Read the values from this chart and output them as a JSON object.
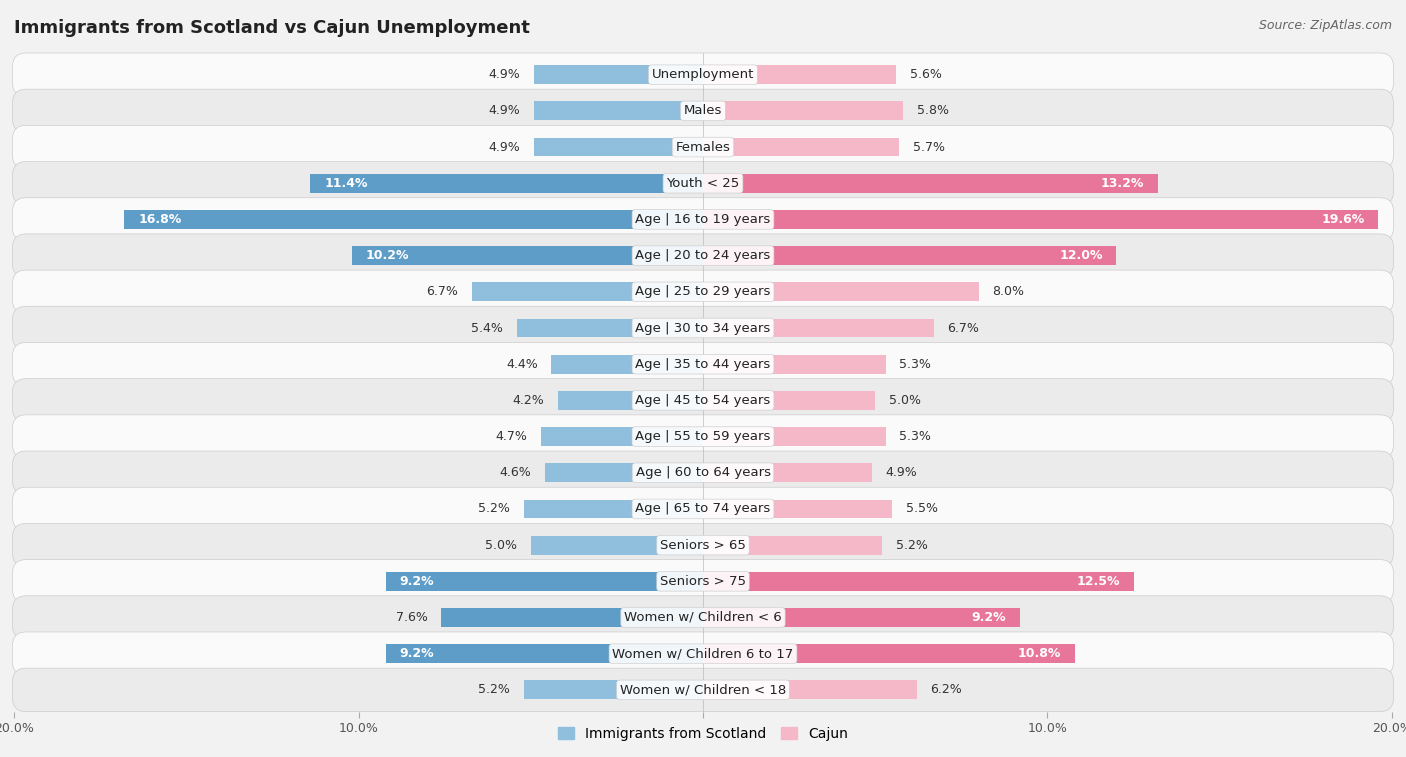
{
  "title": "Immigrants from Scotland vs Cajun Unemployment",
  "source": "Source: ZipAtlas.com",
  "categories": [
    "Unemployment",
    "Males",
    "Females",
    "Youth < 25",
    "Age | 16 to 19 years",
    "Age | 20 to 24 years",
    "Age | 25 to 29 years",
    "Age | 30 to 34 years",
    "Age | 35 to 44 years",
    "Age | 45 to 54 years",
    "Age | 55 to 59 years",
    "Age | 60 to 64 years",
    "Age | 65 to 74 years",
    "Seniors > 65",
    "Seniors > 75",
    "Women w/ Children < 6",
    "Women w/ Children 6 to 17",
    "Women w/ Children < 18"
  ],
  "scotland_values": [
    4.9,
    4.9,
    4.9,
    11.4,
    16.8,
    10.2,
    6.7,
    5.4,
    4.4,
    4.2,
    4.7,
    4.6,
    5.2,
    5.0,
    9.2,
    7.6,
    9.2,
    5.2
  ],
  "cajun_values": [
    5.6,
    5.8,
    5.7,
    13.2,
    19.6,
    12.0,
    8.0,
    6.7,
    5.3,
    5.0,
    5.3,
    4.9,
    5.5,
    5.2,
    12.5,
    9.2,
    10.8,
    6.2
  ],
  "scotland_color_normal": "#90bedd",
  "cajun_color_normal": "#f5b8c8",
  "scotland_color_high": "#5d9dc8",
  "cajun_color_high": "#e8759a",
  "axis_max": 20.0,
  "bar_height": 0.52,
  "bg_color": "#f2f2f2",
  "row_color_light": "#fafafa",
  "row_color_dark": "#ebebeb",
  "title_fontsize": 13,
  "label_fontsize": 9.5,
  "value_fontsize": 9.0,
  "tick_fontsize": 9.0,
  "legend_fontsize": 10,
  "source_fontsize": 9
}
